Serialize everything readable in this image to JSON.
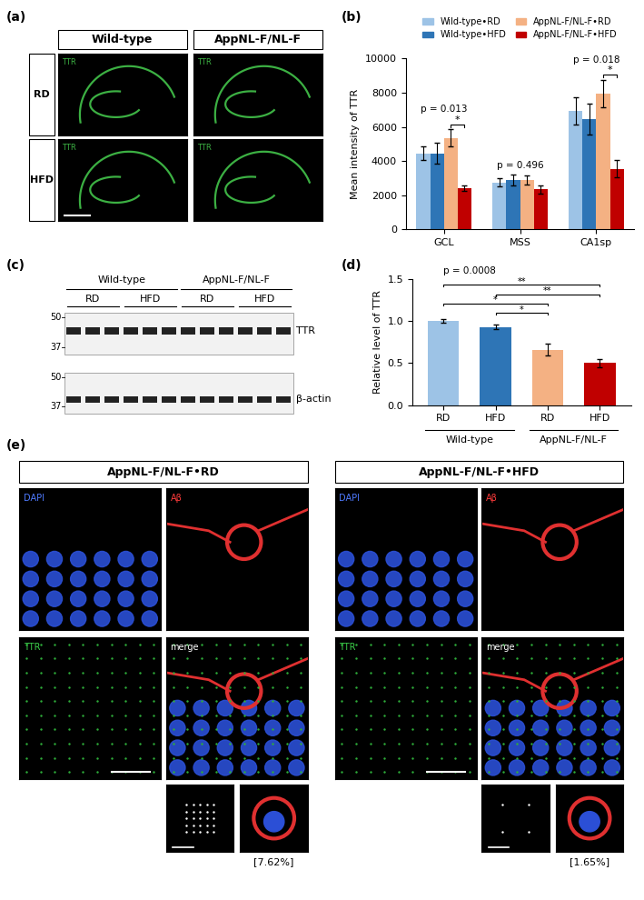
{
  "panel_a": {
    "label": "(a)",
    "columns": [
      "Wild-type",
      "AppNL-F/NL-F"
    ],
    "rows": [
      "RD",
      "HFD"
    ],
    "stain": "TTR"
  },
  "chart_data": [
    {
      "type": "bar",
      "panel_label": "(b)",
      "y_label": "Mean intensity of TTR",
      "categories": [
        "GCL",
        "MSS",
        "CA1sp"
      ],
      "series": [
        {
          "name": "Wild-type•RD",
          "color": "#9dc3e6",
          "values": [
            4450,
            2750,
            6950
          ],
          "errors": [
            400,
            250,
            800
          ]
        },
        {
          "name": "Wild-type•HFD",
          "color": "#2e75b6",
          "values": [
            4450,
            2900,
            6450
          ],
          "errors": [
            600,
            300,
            900
          ]
        },
        {
          "name": "AppNL-F/NL-F•RD",
          "color": "#f4b183",
          "values": [
            5350,
            2900,
            7950
          ],
          "errors": [
            500,
            250,
            800
          ]
        },
        {
          "name": "AppNL-F/NL-F•HFD",
          "color": "#c00000",
          "values": [
            2400,
            2350,
            3550
          ],
          "errors": [
            150,
            250,
            500
          ]
        }
      ],
      "ylim": [
        0,
        10000
      ],
      "yticks": [
        0,
        2000,
        4000,
        6000,
        8000,
        10000
      ],
      "legend": "upper center",
      "p_values": [
        "p = 0.013",
        "p = 0.496",
        "p = 0.018"
      ],
      "comparisons": [
        {
          "category": "GCL",
          "from": 2,
          "to": 3,
          "label": "*"
        },
        {
          "category": "CA1sp",
          "from": 2,
          "to": 3,
          "label": "*"
        }
      ]
    },
    {
      "type": "bar",
      "panel_label": "(d)",
      "y_label": "Relative level of TTR",
      "categories": [
        "RD",
        "HFD",
        "RD",
        "HFD"
      ],
      "groups": [
        "Wild-type",
        "AppNL-F/NL-F"
      ],
      "values": [
        1.0,
        0.93,
        0.66,
        0.5
      ],
      "errors": [
        0.02,
        0.03,
        0.07,
        0.05
      ],
      "colors": [
        "#9dc3e6",
        "#2e75b6",
        "#f4b183",
        "#c00000"
      ],
      "ylim": [
        0,
        1.5
      ],
      "yticks": [
        {
          "value": 0,
          "label": "0.0"
        },
        0.5,
        {
          "value": 1,
          "label": "1.0"
        },
        1.5
      ],
      "annotations": [
        "p = 0.0008"
      ],
      "comparisons": [
        {
          "from": 1,
          "to": 2,
          "label": "*"
        },
        {
          "from": 0,
          "to": 2,
          "label": "*"
        },
        {
          "from": 1,
          "to": 3,
          "label": "**"
        },
        {
          "from": 0,
          "to": 3,
          "label": "**"
        }
      ]
    }
  ],
  "panel_c": {
    "label": "(c)",
    "groups": [
      "Wild-type",
      "AppNL-F/NL-F"
    ],
    "diets": [
      "RD",
      "HFD"
    ],
    "replicates": 3,
    "markers": [
      50,
      37
    ],
    "bands": [
      "TTR",
      "β-actin"
    ]
  },
  "panel_e": {
    "label": "(e)",
    "panels": [
      {
        "title": "AppNL-F/NL-F•RD",
        "overlap": "[7.62%]"
      },
      {
        "title": "AppNL-F/NL-F•HFD",
        "overlap": "[1.65%]"
      }
    ],
    "channels": [
      "DAPI",
      "Aβ",
      "TTR",
      "merge"
    ]
  }
}
